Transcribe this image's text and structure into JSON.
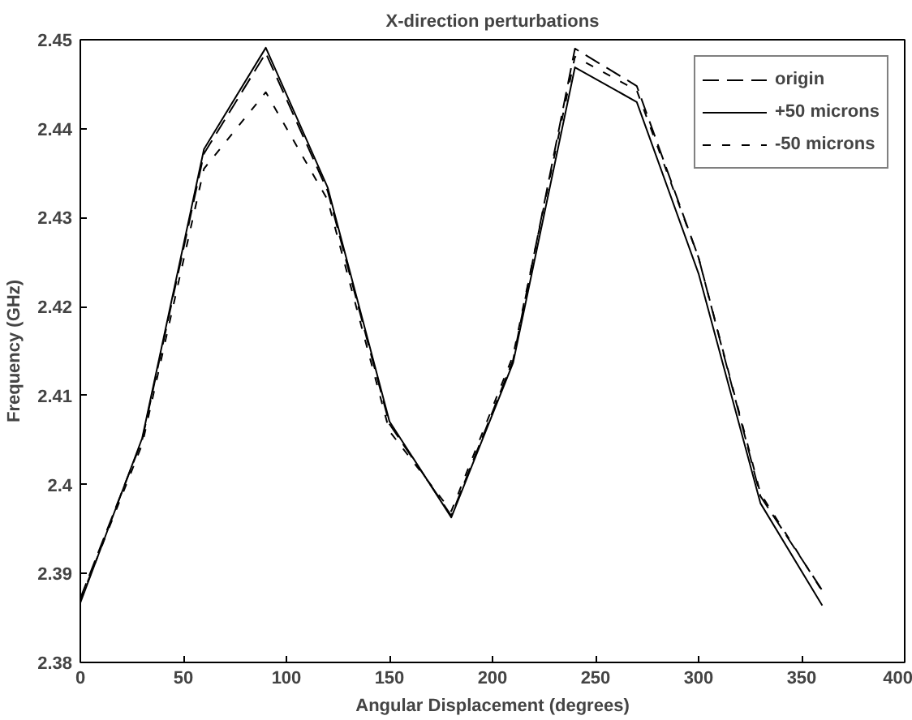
{
  "chart_data": {
    "type": "line",
    "title": "X-direction perturbations",
    "xlabel": "Angular Displacement (degrees)",
    "ylabel": "Frequency (GHz)",
    "x": [
      0,
      30,
      60,
      90,
      120,
      150,
      180,
      210,
      240,
      270,
      300,
      330,
      360
    ],
    "series": [
      {
        "name": "origin",
        "color": "#000000",
        "line_style": "dashed",
        "values": [
          2.3872,
          2.405,
          2.4372,
          2.4485,
          2.433,
          2.4068,
          2.3965,
          2.414,
          2.449,
          2.4448,
          2.4255,
          2.3987,
          2.3881
        ]
      },
      {
        "name": "+50 microns",
        "color": "#000000",
        "line_style": "solid",
        "values": [
          2.3867,
          2.4052,
          2.4377,
          2.4491,
          2.4334,
          2.4071,
          2.3963,
          2.4137,
          2.4469,
          2.443,
          2.4237,
          2.3979,
          2.3864
        ]
      },
      {
        "name": "-50 microns",
        "color": "#000000",
        "line_style": "dotted",
        "values": [
          2.387,
          2.4045,
          2.4355,
          2.4441,
          2.432,
          2.406,
          2.397,
          2.4145,
          2.4481,
          2.4443,
          2.4255,
          2.399,
          2.388
        ]
      }
    ],
    "xlim": [
      0,
      400
    ],
    "xticks": [
      0,
      50,
      100,
      150,
      200,
      250,
      300,
      350,
      400
    ],
    "ylim": [
      2.38,
      2.45
    ],
    "yticks": [
      2.38,
      2.39,
      2.4,
      2.41,
      2.42,
      2.43,
      2.44,
      2.45
    ],
    "grid": false,
    "legend": "top right",
    "marker": "none"
  }
}
